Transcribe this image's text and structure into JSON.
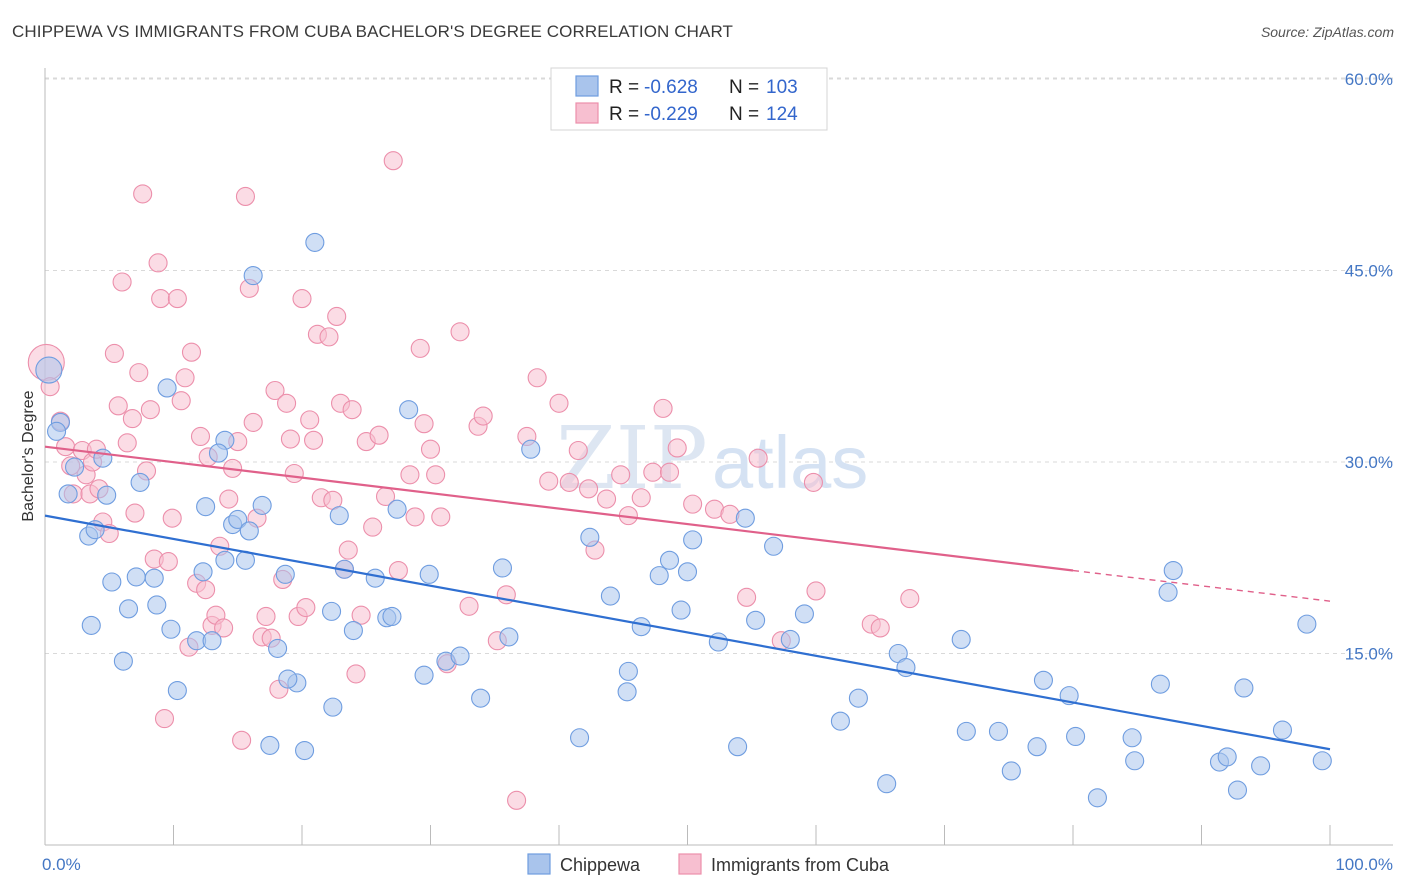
{
  "title": "CHIPPEWA VS IMMIGRANTS FROM CUBA BACHELOR'S DEGREE CORRELATION CHART",
  "source": "Source: ZipAtlas.com",
  "watermark": {
    "part1": "ZIP",
    "part2": "atlas"
  },
  "legend": {
    "rows": [
      {
        "r_label": "R = ",
        "r_value": "-0.628",
        "n_label": "N = ",
        "n_value": "103"
      },
      {
        "r_label": "R = ",
        "r_value": "-0.229",
        "n_label": "N = ",
        "n_value": "124"
      }
    ]
  },
  "bottom_legend": [
    "Chippewa",
    "Immigrants from Cuba"
  ],
  "colors": {
    "blue_fill": "#a9c4ec",
    "blue_stroke": "#6f9de0",
    "blue_line": "#2f6fd1",
    "pink_fill": "#f7bfd0",
    "pink_stroke": "#ec8fab",
    "pink_line": "#e0608a",
    "grid": "#d9d9d9",
    "tick_text": "#4477c4"
  },
  "chart_data": {
    "type": "scatter",
    "title": "CHIPPEWA VS IMMIGRANTS FROM CUBA BACHELOR'S DEGREE CORRELATION CHART",
    "xlabel": "",
    "ylabel": "Bachelor's Degree",
    "xlim": [
      0,
      100
    ],
    "ylim": [
      0,
      63
    ],
    "x_tick_labels": [
      "0.0%",
      "100.0%"
    ],
    "y_ticks": [
      15,
      30,
      45,
      60
    ],
    "y_tick_labels": [
      "15.0%",
      "30.0%",
      "45.0%",
      "60.0%"
    ],
    "grid": true,
    "legend_position": "top-center",
    "series": [
      {
        "name": "Chippewa",
        "R": -0.628,
        "N": 103,
        "trend": {
          "x": [
            0,
            100
          ],
          "y": [
            25.8,
            7.5
          ]
        },
        "points": [
          [
            0.3,
            37.2
          ],
          [
            1.2,
            33.1
          ],
          [
            0.9,
            32.4
          ],
          [
            2.3,
            29.6
          ],
          [
            1.8,
            27.5
          ],
          [
            4.5,
            30.3
          ],
          [
            4.8,
            27.4
          ],
          [
            3.4,
            24.2
          ],
          [
            3.9,
            24.7
          ],
          [
            7.4,
            28.4
          ],
          [
            5.2,
            20.6
          ],
          [
            6.5,
            18.5
          ],
          [
            7.1,
            21.0
          ],
          [
            8.5,
            20.9
          ],
          [
            8.7,
            18.8
          ],
          [
            9.5,
            35.8
          ],
          [
            9.8,
            16.9
          ],
          [
            11.8,
            16.0
          ],
          [
            12.3,
            21.4
          ],
          [
            13.0,
            16.0
          ],
          [
            12.5,
            26.5
          ],
          [
            14.0,
            31.7
          ],
          [
            14.0,
            22.3
          ],
          [
            13.5,
            30.7
          ],
          [
            14.6,
            25.1
          ],
          [
            15.0,
            25.5
          ],
          [
            15.6,
            22.3
          ],
          [
            15.9,
            24.6
          ],
          [
            16.2,
            44.6
          ],
          [
            16.9,
            26.6
          ],
          [
            17.5,
            7.8
          ],
          [
            18.1,
            15.4
          ],
          [
            18.7,
            21.2
          ],
          [
            19.6,
            12.7
          ],
          [
            20.2,
            7.4
          ],
          [
            21.0,
            47.2
          ],
          [
            22.3,
            18.3
          ],
          [
            22.9,
            25.8
          ],
          [
            23.3,
            21.6
          ],
          [
            24.0,
            16.8
          ],
          [
            22.4,
            10.8
          ],
          [
            25.7,
            20.9
          ],
          [
            26.6,
            17.8
          ],
          [
            27.4,
            26.3
          ],
          [
            28.3,
            34.1
          ],
          [
            29.5,
            13.3
          ],
          [
            29.9,
            21.2
          ],
          [
            31.2,
            14.4
          ],
          [
            32.3,
            14.8
          ],
          [
            33.9,
            11.5
          ],
          [
            35.6,
            21.7
          ],
          [
            37.8,
            31.0
          ],
          [
            41.6,
            8.4
          ],
          [
            42.4,
            24.1
          ],
          [
            44.0,
            19.5
          ],
          [
            45.3,
            12.0
          ],
          [
            45.4,
            13.6
          ],
          [
            46.4,
            17.1
          ],
          [
            47.8,
            21.1
          ],
          [
            48.6,
            22.3
          ],
          [
            49.5,
            18.4
          ],
          [
            50.0,
            21.4
          ],
          [
            50.4,
            23.9
          ],
          [
            52.4,
            15.9
          ],
          [
            53.9,
            7.7
          ],
          [
            54.5,
            25.6
          ],
          [
            55.3,
            17.6
          ],
          [
            56.7,
            23.4
          ],
          [
            58.0,
            16.1
          ],
          [
            59.1,
            18.1
          ],
          [
            61.9,
            9.7
          ],
          [
            63.3,
            11.5
          ],
          [
            65.5,
            4.8
          ],
          [
            66.4,
            15.0
          ],
          [
            67.0,
            13.9
          ],
          [
            71.3,
            16.1
          ],
          [
            71.7,
            8.9
          ],
          [
            74.2,
            8.9
          ],
          [
            75.2,
            5.8
          ],
          [
            77.2,
            7.7
          ],
          [
            77.7,
            12.9
          ],
          [
            79.7,
            11.7
          ],
          [
            80.2,
            8.5
          ],
          [
            81.9,
            3.7
          ],
          [
            84.6,
            8.4
          ],
          [
            84.8,
            6.6
          ],
          [
            86.8,
            12.6
          ],
          [
            87.4,
            19.8
          ],
          [
            87.8,
            21.5
          ],
          [
            91.4,
            6.5
          ],
          [
            92.0,
            6.9
          ],
          [
            92.8,
            4.3
          ],
          [
            93.3,
            12.3
          ],
          [
            94.6,
            6.2
          ],
          [
            96.3,
            9.0
          ],
          [
            98.2,
            17.3
          ],
          [
            99.4,
            6.6
          ],
          [
            3.6,
            17.2
          ],
          [
            6.1,
            14.4
          ],
          [
            10.3,
            12.1
          ],
          [
            18.9,
            13.0
          ],
          [
            27.0,
            17.9
          ],
          [
            36.1,
            16.3
          ]
        ]
      },
      {
        "name": "Immigrants from Cuba",
        "R": -0.229,
        "N": 124,
        "trend": {
          "x": [
            0,
            80
          ],
          "y": [
            31.2,
            21.5
          ]
        },
        "trend_dashed": {
          "x": [
            80,
            100
          ],
          "y": [
            21.5,
            19.1
          ]
        },
        "points": [
          [
            0.1,
            37.8
          ],
          [
            0.4,
            35.9
          ],
          [
            1.2,
            33.2
          ],
          [
            1.6,
            31.2
          ],
          [
            2.0,
            29.7
          ],
          [
            2.2,
            27.5
          ],
          [
            2.9,
            30.9
          ],
          [
            3.2,
            29.0
          ],
          [
            3.5,
            27.5
          ],
          [
            3.7,
            30.0
          ],
          [
            4.0,
            31.0
          ],
          [
            4.2,
            27.9
          ],
          [
            4.5,
            25.3
          ],
          [
            5.0,
            24.4
          ],
          [
            5.4,
            38.5
          ],
          [
            5.7,
            34.4
          ],
          [
            6.0,
            44.1
          ],
          [
            6.4,
            31.5
          ],
          [
            6.8,
            33.4
          ],
          [
            7.0,
            26.0
          ],
          [
            7.3,
            37.0
          ],
          [
            7.6,
            51.0
          ],
          [
            7.9,
            29.3
          ],
          [
            8.2,
            34.1
          ],
          [
            8.5,
            22.4
          ],
          [
            8.8,
            45.6
          ],
          [
            9.0,
            42.8
          ],
          [
            9.3,
            9.9
          ],
          [
            9.6,
            22.2
          ],
          [
            9.9,
            25.6
          ],
          [
            10.3,
            42.8
          ],
          [
            10.6,
            34.8
          ],
          [
            10.9,
            36.6
          ],
          [
            11.2,
            15.5
          ],
          [
            11.4,
            38.6
          ],
          [
            11.8,
            20.5
          ],
          [
            12.1,
            32.0
          ],
          [
            12.5,
            20.0
          ],
          [
            12.7,
            30.4
          ],
          [
            13.0,
            17.2
          ],
          [
            13.3,
            18.0
          ],
          [
            13.6,
            23.4
          ],
          [
            13.9,
            17.0
          ],
          [
            14.3,
            27.1
          ],
          [
            14.6,
            29.5
          ],
          [
            15.0,
            31.6
          ],
          [
            15.3,
            8.2
          ],
          [
            15.6,
            50.8
          ],
          [
            15.9,
            43.6
          ],
          [
            16.2,
            33.1
          ],
          [
            16.5,
            25.6
          ],
          [
            16.9,
            16.3
          ],
          [
            17.2,
            17.9
          ],
          [
            17.6,
            16.2
          ],
          [
            17.9,
            35.6
          ],
          [
            18.2,
            12.2
          ],
          [
            18.5,
            20.8
          ],
          [
            18.8,
            34.6
          ],
          [
            19.1,
            31.8
          ],
          [
            19.4,
            29.1
          ],
          [
            19.7,
            17.9
          ],
          [
            20.0,
            42.8
          ],
          [
            20.3,
            18.6
          ],
          [
            20.6,
            33.3
          ],
          [
            20.9,
            31.7
          ],
          [
            21.2,
            40.0
          ],
          [
            21.5,
            27.2
          ],
          [
            22.1,
            39.8
          ],
          [
            22.4,
            27.0
          ],
          [
            22.7,
            41.4
          ],
          [
            23.0,
            34.6
          ],
          [
            23.3,
            21.6
          ],
          [
            23.6,
            23.1
          ],
          [
            23.9,
            34.1
          ],
          [
            24.2,
            13.4
          ],
          [
            24.6,
            18.0
          ],
          [
            25.0,
            31.6
          ],
          [
            25.5,
            24.9
          ],
          [
            26.0,
            32.1
          ],
          [
            26.5,
            27.3
          ],
          [
            27.1,
            53.6
          ],
          [
            27.5,
            21.5
          ],
          [
            28.4,
            29.0
          ],
          [
            28.8,
            25.7
          ],
          [
            29.2,
            38.9
          ],
          [
            29.5,
            33.0
          ],
          [
            30.0,
            31.0
          ],
          [
            30.4,
            29.0
          ],
          [
            30.8,
            25.7
          ],
          [
            31.3,
            14.2
          ],
          [
            32.3,
            40.2
          ],
          [
            33.0,
            18.7
          ],
          [
            33.7,
            32.8
          ],
          [
            34.1,
            33.6
          ],
          [
            35.2,
            16.0
          ],
          [
            35.9,
            19.6
          ],
          [
            36.7,
            3.5
          ],
          [
            37.5,
            32.0
          ],
          [
            38.3,
            36.6
          ],
          [
            39.2,
            28.5
          ],
          [
            40.0,
            34.6
          ],
          [
            40.8,
            28.4
          ],
          [
            41.5,
            30.9
          ],
          [
            42.3,
            27.9
          ],
          [
            42.8,
            23.1
          ],
          [
            43.7,
            27.1
          ],
          [
            44.8,
            29.0
          ],
          [
            45.4,
            25.8
          ],
          [
            46.4,
            27.2
          ],
          [
            47.3,
            29.2
          ],
          [
            48.1,
            34.2
          ],
          [
            48.6,
            29.2
          ],
          [
            49.2,
            31.1
          ],
          [
            50.4,
            26.7
          ],
          [
            52.1,
            26.3
          ],
          [
            53.3,
            25.9
          ],
          [
            54.6,
            19.4
          ],
          [
            55.5,
            30.3
          ],
          [
            57.3,
            16.0
          ],
          [
            59.8,
            28.4
          ],
          [
            60.0,
            19.9
          ],
          [
            64.3,
            17.3
          ],
          [
            65.0,
            17.0
          ],
          [
            67.3,
            19.3
          ]
        ]
      }
    ]
  }
}
